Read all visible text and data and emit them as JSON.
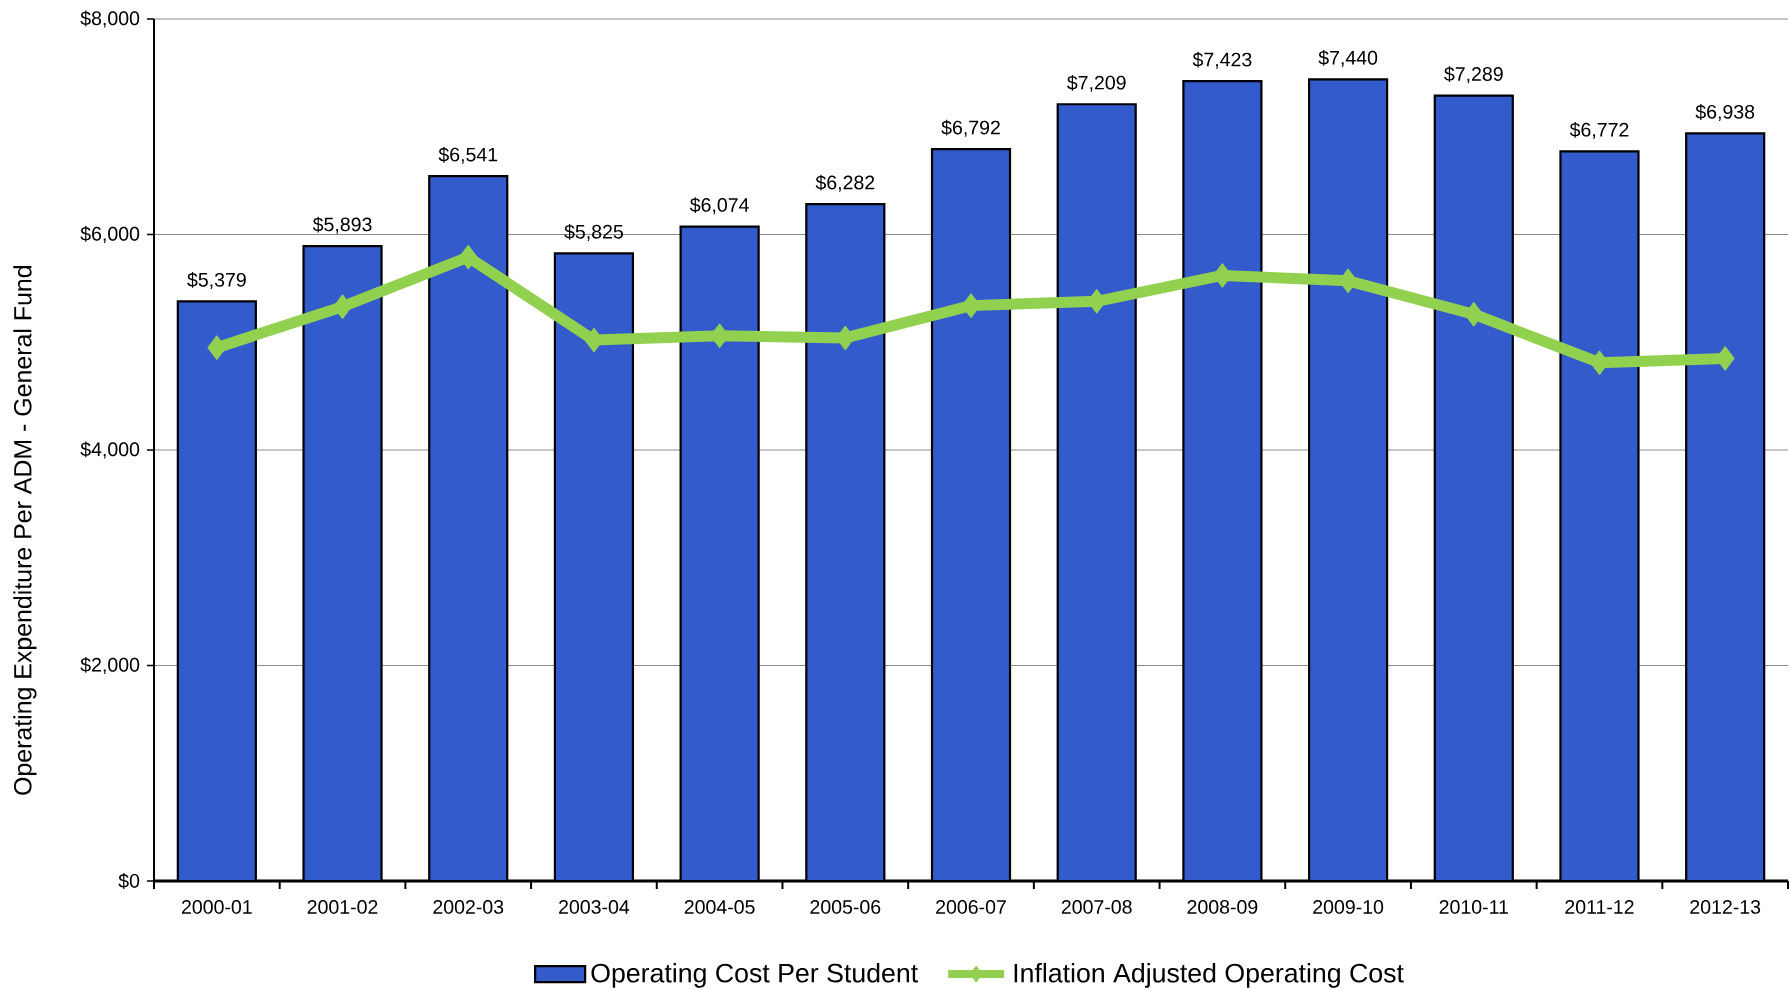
{
  "chart_data": {
    "type": "bar",
    "ylabel": "Operating Expenditure Per ADM - General Fund",
    "categories": [
      "2000-01",
      "2001-02",
      "2002-03",
      "2003-04",
      "2004-05",
      "2005-06",
      "2006-07",
      "2007-08",
      "2008-09",
      "2009-10",
      "2010-11",
      "2011-12",
      "2012-13"
    ],
    "series": [
      {
        "name": "Operating Cost Per Student",
        "color": "#335bcc",
        "values": [
          5379,
          5893,
          6541,
          5825,
          6074,
          6282,
          6792,
          7209,
          7423,
          7440,
          7289,
          6772,
          6938
        ],
        "value_labels": [
          "$5,379",
          "$5,893",
          "$6,541",
          "$5,825",
          "$6,074",
          "$6,282",
          "$6,792",
          "$7,209",
          "$7,423",
          "$7,440",
          "$7,289",
          "$6,772",
          "$6,938"
        ]
      },
      {
        "name": "Inflation Adjusted Operating  Cost",
        "type": "line",
        "color": "#92d050",
        "marker": "diamond",
        "values": [
          4950,
          5330,
          5790,
          5020,
          5060,
          5040,
          5340,
          5380,
          5620,
          5570,
          5260,
          4810,
          4850
        ]
      }
    ],
    "ylim": [
      0,
      8000
    ],
    "yticks": [
      {
        "value": 0,
        "label": "$0"
      },
      {
        "value": 2000,
        "label": "$2,000"
      },
      {
        "value": 4000,
        "label": "$4,000"
      },
      {
        "value": 6000,
        "label": "$6,000"
      },
      {
        "value": 8000,
        "label": "$8,000"
      }
    ],
    "grid": "y",
    "legend": "bottom"
  }
}
